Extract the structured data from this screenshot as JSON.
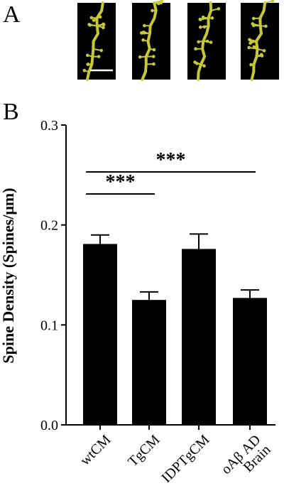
{
  "panels": {
    "a": "A",
    "b": "B"
  },
  "micrographs": {
    "count": 4,
    "background": "#000000",
    "dendrite_color": "#c6c83a",
    "scale_bar_color": "#ffffff"
  },
  "chart_data": {
    "type": "bar",
    "categories": [
      "wtCM",
      "TgCM",
      "IDPTgCM",
      "oAβ AD Brain"
    ],
    "category_lines": [
      [
        "wtCM"
      ],
      [
        "TgCM"
      ],
      [
        "IDPTgCM"
      ],
      [
        "oAβ AD",
        "Brain"
      ]
    ],
    "values": [
      0.181,
      0.125,
      0.176,
      0.127
    ],
    "errors": [
      0.009,
      0.008,
      0.015,
      0.008
    ],
    "ylabel": "Spine Density (Spines/μm)",
    "xlabel": "",
    "ylim": [
      0.0,
      0.3
    ],
    "yticks": [
      0.0,
      0.1,
      0.2,
      0.3
    ],
    "ytick_labels": [
      "0.0",
      "0.1",
      "0.2",
      "0.3"
    ],
    "bar_color": "#000000",
    "grid": false,
    "significance": [
      {
        "from": 0,
        "to": 1,
        "label": "***"
      },
      {
        "from": 0,
        "to": 3,
        "label": "***"
      }
    ]
  }
}
